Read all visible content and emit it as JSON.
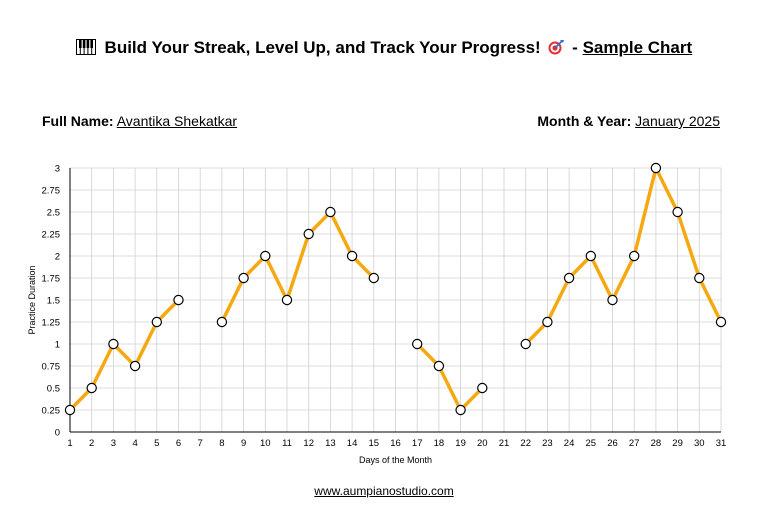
{
  "header": {
    "piano_icon": "piano-keys-icon",
    "title_main": "Build Your Streak, Level Up, and Track Your Progress!",
    "target_icon": "dart-target-icon",
    "separator": "-",
    "title_link": "Sample Chart"
  },
  "info": {
    "name_label": "Full Name:",
    "name_value": "Avantika Shekatkar",
    "date_label": "Month & Year:",
    "date_value": "January 2025"
  },
  "footer": {
    "url": "www.aumpianostudio.com"
  },
  "colors": {
    "line": "#f5a80f",
    "grid": "#d0d0d0",
    "marker_fill": "#ffffff",
    "marker_stroke": "#000000"
  },
  "chart_data": {
    "type": "line",
    "xlabel": "Days of the Month",
    "ylabel": "Practice Duration",
    "xlim": [
      1,
      31
    ],
    "ylim": [
      0,
      3
    ],
    "x_ticks": [
      "1",
      "2",
      "3",
      "4",
      "5",
      "6",
      "7",
      "8",
      "9",
      "10",
      "11",
      "12",
      "13",
      "14",
      "15",
      "16",
      "17",
      "18",
      "19",
      "20",
      "21",
      "22",
      "23",
      "24",
      "25",
      "26",
      "27",
      "28",
      "29",
      "30",
      "31"
    ],
    "y_ticks": [
      "0",
      "0.25",
      "0.5",
      "0.75",
      "1",
      "1.25",
      "1.5",
      "1.75",
      "2",
      "2.25",
      "2.5",
      "2.75",
      "3"
    ],
    "grid": true,
    "series": [
      {
        "x": [
          1,
          2,
          3,
          4,
          5,
          6,
          7,
          8,
          9,
          10,
          11,
          12,
          13,
          14,
          15,
          16,
          17,
          18,
          19,
          20,
          21,
          22,
          23,
          24,
          25,
          26,
          27,
          28,
          29,
          30,
          31
        ],
        "values": [
          0.25,
          0.5,
          1,
          0.75,
          1.25,
          1.5,
          null,
          1.25,
          1.75,
          2,
          1.5,
          2.25,
          2.5,
          2,
          1.75,
          null,
          1,
          0.75,
          0.25,
          0.5,
          null,
          1,
          1.25,
          1.75,
          2,
          1.5,
          2,
          3,
          2.5,
          1.75,
          1.25
        ]
      }
    ]
  }
}
